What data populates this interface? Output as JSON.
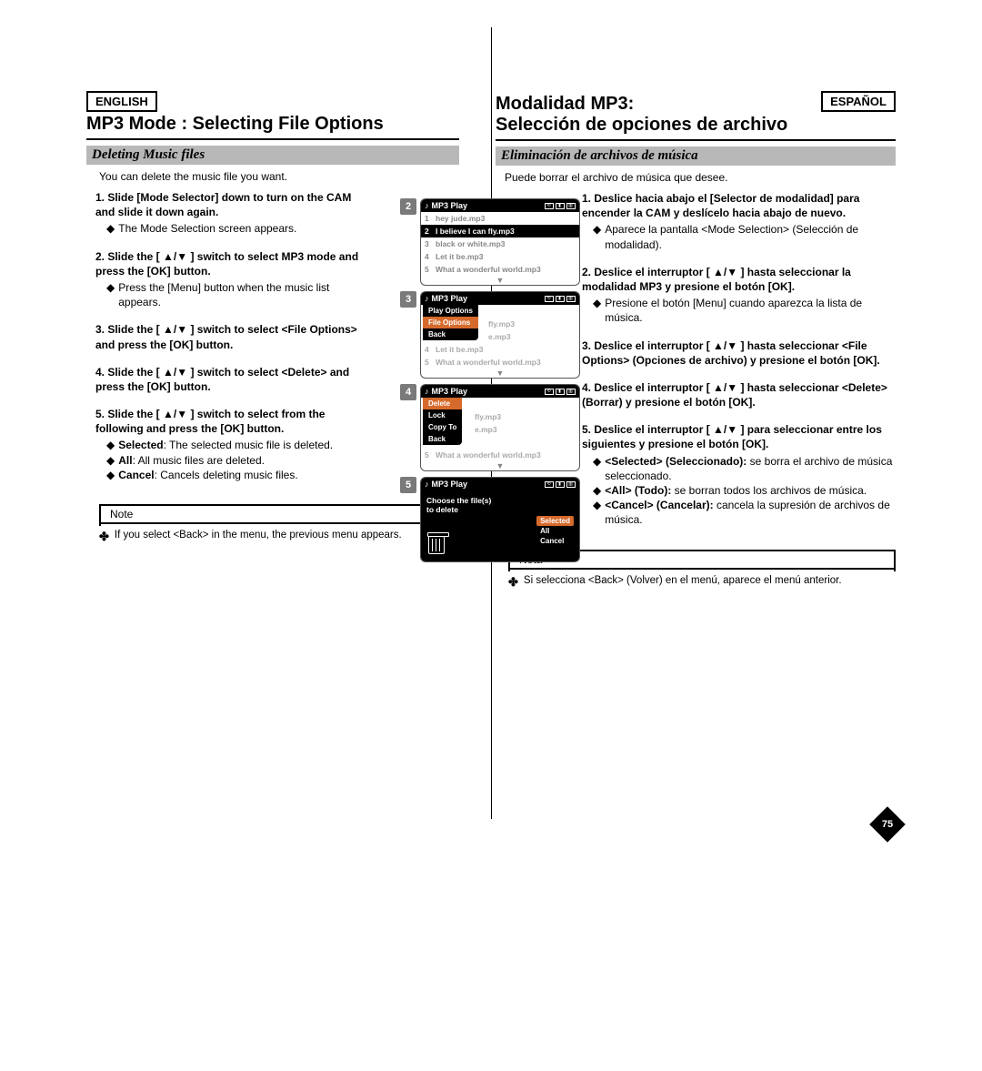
{
  "page_number": "75",
  "left": {
    "lang": "ENGLISH",
    "title": "MP3 Mode : Selecting File Options",
    "subtitle": "Deleting Music files",
    "intro": "You can delete the music file you want.",
    "steps": [
      {
        "bold": "1. Slide [Mode Selector] down to turn on the CAM and slide it down again.",
        "subs": [
          "The Mode Selection screen appears."
        ]
      },
      {
        "bold": "2. Slide the [ ▲/▼ ] switch to select MP3 mode and press the [OK] button.",
        "subs": [
          "Press the [Menu] button when the music list appears."
        ]
      },
      {
        "bold": "3. Slide the [ ▲/▼ ] switch to select <File Options> and press the [OK] button.",
        "subs": []
      },
      {
        "bold": "4. Slide the [ ▲/▼ ] switch to select <Delete> and press the [OK] button.",
        "subs": []
      },
      {
        "bold": "5. Slide the [ ▲/▼ ] switch to select from the following and press the [OK] button.",
        "subs_rich": [
          {
            "b": "Selected",
            "t": ": The selected music file is deleted."
          },
          {
            "b": "All",
            "t": ": All music files are deleted."
          },
          {
            "b": "Cancel",
            "t": ": Cancels deleting music files."
          }
        ]
      }
    ],
    "note_label": "Note",
    "note_text": "If you select <Back> in the menu, the previous menu appears."
  },
  "right": {
    "lang": "ESPAÑOL",
    "title_l1": "Modalidad MP3:",
    "title_l2": "Selección de opciones de archivo",
    "subtitle": "Eliminación de archivos de música",
    "intro": "Puede borrar el archivo de música que desee.",
    "steps": [
      {
        "bold": "1. Deslice hacia abajo el [Selector de modalidad] para encender la CAM y deslícelo hacia abajo de nuevo.",
        "subs": [
          "Aparece la pantalla <Mode Selection> (Selección de modalidad)."
        ]
      },
      {
        "bold": "2. Deslice el interruptor [ ▲/▼ ] hasta seleccionar la modalidad MP3 y presione el botón [OK].",
        "subs": [
          "Presione el botón [Menu] cuando aparezca la lista de música."
        ]
      },
      {
        "bold": "3. Deslice el interruptor [ ▲/▼ ] hasta seleccionar <File Options> (Opciones de archivo) y presione el botón [OK].",
        "subs": []
      },
      {
        "bold": "4. Deslice el interruptor [ ▲/▼ ] hasta seleccionar <Delete> (Borrar) y presione el botón [OK].",
        "subs": []
      },
      {
        "bold": "5. Deslice el interruptor [ ▲/▼ ] para seleccionar entre los siguientes y presione el botón [OK].",
        "subs_rich": [
          {
            "b": "<Selected> (Seleccionado):",
            "t": " se borra el archivo de música seleccionado."
          },
          {
            "b": "<All> (Todo):",
            "t": " se borran todos los archivos de música."
          },
          {
            "b": "<Cancel> (Cancelar):",
            "t": " cancela la supresión de archivos de música."
          }
        ]
      }
    ],
    "note_label": "Nota",
    "note_text": "Si selecciona <Back> (Volver) en el menú, aparece el menú anterior."
  },
  "screens": {
    "header": "MP3 Play",
    "s2": {
      "num": "2",
      "rows": [
        {
          "n": "1",
          "t": "hey jude.mp3",
          "sel": false
        },
        {
          "n": "2",
          "t": "I believe I can fly.mp3",
          "sel": true
        },
        {
          "n": "3",
          "t": "black or white.mp3",
          "sel": false
        },
        {
          "n": "4",
          "t": "Let it be.mp3",
          "sel": false
        },
        {
          "n": "5",
          "t": "What a wonderful world.mp3",
          "sel": false
        }
      ]
    },
    "s3": {
      "num": "3",
      "menu": [
        "Play Options",
        "File Options",
        "Back"
      ],
      "hl": 1,
      "bg": [
        {
          "t": "fly.mp3"
        },
        {
          "t": "e.mp3"
        },
        {
          "n": "4",
          "t": "Let it be.mp3"
        },
        {
          "n": "5",
          "t": "What a wonderful world.mp3"
        }
      ]
    },
    "s4": {
      "num": "4",
      "menu": [
        "Delete",
        "Lock",
        "Copy To",
        "Back"
      ],
      "hl": 0,
      "bg": [
        {
          "t": "fly.mp3"
        },
        {
          "t": "e.mp3"
        },
        {
          "n": "5",
          "t": "What a wonderful world.mp3"
        }
      ]
    },
    "s5": {
      "num": "5",
      "choose_l1": "Choose the file(s)",
      "choose_l2": "to delete",
      "opts": [
        "Selected",
        "All",
        "Cancel"
      ],
      "hl": 0
    }
  }
}
